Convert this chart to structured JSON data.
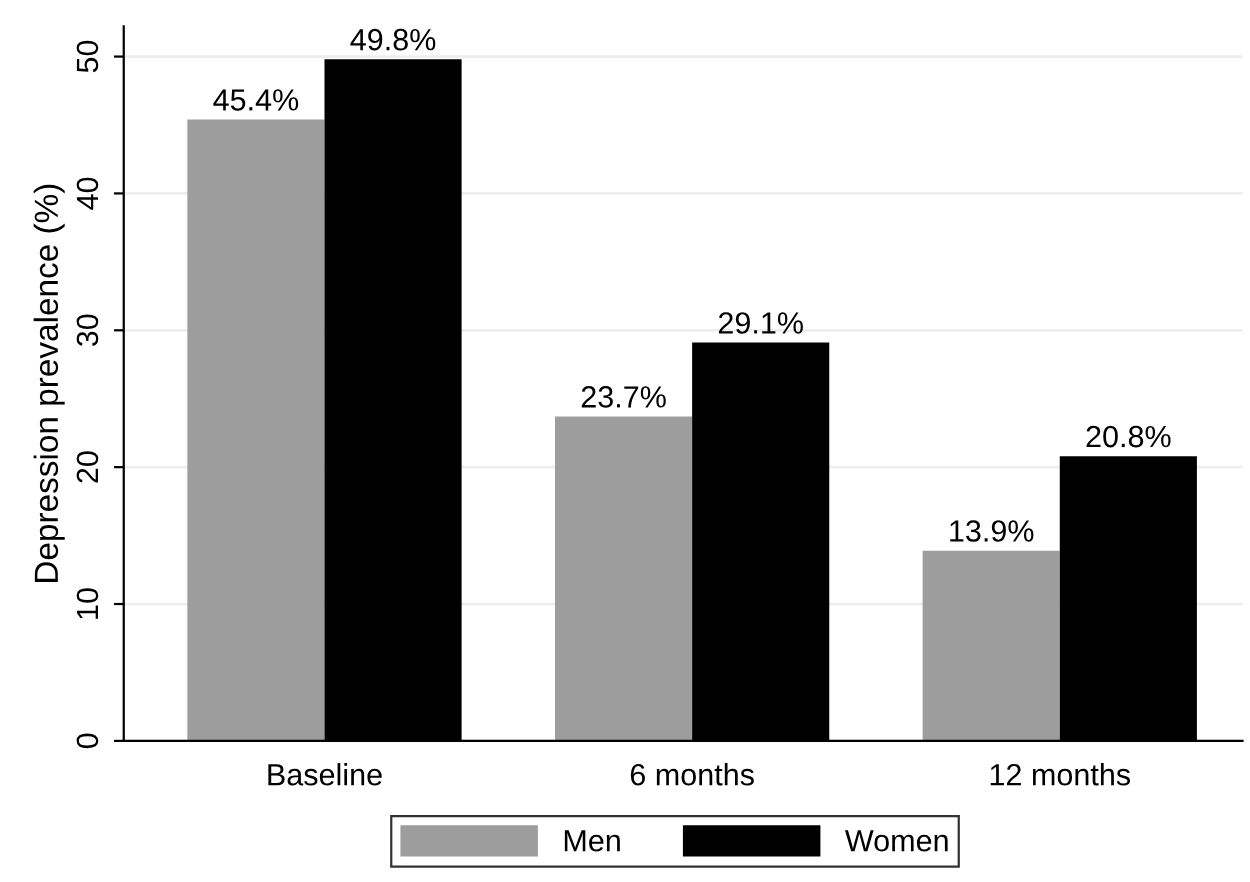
{
  "chart_data": {
    "type": "bar",
    "ylabel": "Depression prevalence (%)",
    "categories": [
      "Baseline",
      "6 months",
      "12 months"
    ],
    "series": [
      {
        "name": "Men",
        "color": "#9c9d9c",
        "values": [
          45.4,
          23.7,
          13.9
        ],
        "value_labels": [
          "45.4%",
          "23.7%",
          "13.9%"
        ]
      },
      {
        "name": "Women",
        "color": "#000000",
        "values": [
          49.8,
          29.1,
          20.8
        ],
        "value_labels": [
          "49.8%",
          "29.1%",
          "20.8%"
        ]
      }
    ],
    "ylim": [
      0,
      52.2
    ],
    "yticks": [
      0,
      10,
      20,
      30,
      40,
      50
    ],
    "grid": "y",
    "legend": "bottom"
  }
}
